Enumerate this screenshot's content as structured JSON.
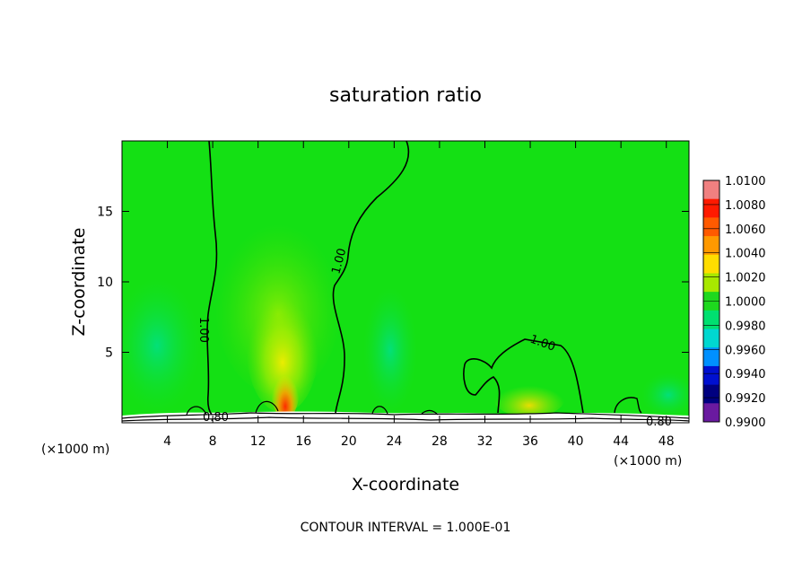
{
  "chart_data": {
    "type": "heatmap",
    "title": "saturation ratio",
    "xlabel": "X-coordinate",
    "ylabel": "Z-coordinate",
    "x_unit_label": "(×1000 m)",
    "x_unit_label_right": "(×1000 m)",
    "xlim": [
      0,
      50
    ],
    "ylim": [
      0,
      20
    ],
    "x_ticks": [
      4,
      8,
      12,
      16,
      20,
      24,
      28,
      32,
      36,
      40,
      44,
      48
    ],
    "y_ticks": [
      5,
      10,
      15
    ],
    "colorbar": {
      "levels": [
        "1.0100",
        "1.0080",
        "1.0060",
        "1.0040",
        "1.0020",
        "1.0000",
        "0.9980",
        "0.9960",
        "0.9940",
        "0.9920",
        "0.9900"
      ],
      "colors": [
        "#f08080",
        "#ff1a00",
        "#ff5a00",
        "#ff9900",
        "#ffdd00",
        "#a8e800",
        "#1ed81e",
        "#00e070",
        "#00d8d0",
        "#0090ff",
        "#0010d0",
        "#000080",
        "#6a1aa0"
      ]
    },
    "contour_labels": [
      "1.00",
      "1.00",
      "1.00",
      "0.80",
      "0.80"
    ],
    "contour_interval": "CONTOUR INTERVAL = 1.000E-01",
    "grid": false,
    "legend": "right"
  }
}
